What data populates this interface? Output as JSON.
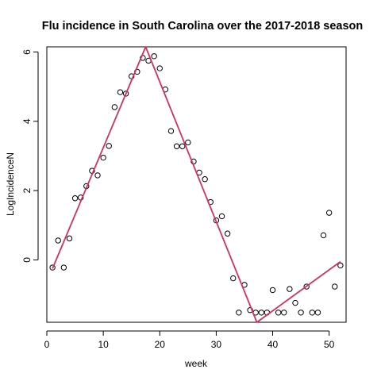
{
  "chart_data": {
    "type": "scatter",
    "title": "Flu incidence in South Carolina over the 2017-2018 season",
    "xlabel": "week",
    "ylabel": "LogIncidenceN",
    "xlim": [
      0,
      53
    ],
    "ylim": [
      -1.8,
      6.15
    ],
    "xticks": [
      0,
      10,
      20,
      30,
      40,
      50
    ],
    "yticks": [
      0,
      2,
      4,
      6
    ],
    "grid": false,
    "legend": "none",
    "colors": {
      "points": "#000000",
      "fit_line": "#d1325a"
    },
    "points": {
      "x": [
        1,
        2,
        3,
        4,
        5,
        6,
        7,
        8,
        9,
        10,
        11,
        12,
        13,
        14,
        15,
        16,
        17,
        18,
        19,
        20,
        21,
        22,
        23,
        24,
        25,
        26,
        27,
        28,
        29,
        30,
        31,
        32,
        33,
        34,
        35,
        36,
        37,
        38,
        39,
        40,
        41,
        42,
        43,
        44,
        45,
        46,
        47,
        48,
        49,
        50,
        51,
        52
      ],
      "y": [
        -0.22,
        0.56,
        -0.22,
        0.62,
        1.78,
        1.8,
        2.13,
        2.57,
        2.44,
        2.95,
        3.29,
        4.41,
        4.84,
        4.8,
        5.3,
        5.43,
        5.83,
        5.75,
        5.88,
        5.53,
        4.92,
        3.72,
        3.28,
        3.28,
        3.39,
        2.84,
        2.52,
        2.33,
        1.67,
        1.14,
        1.26,
        0.76,
        -0.53,
        -1.52,
        -0.72,
        -1.45,
        -1.52,
        -1.52,
        -1.52,
        -0.87,
        -1.52,
        -1.52,
        -0.84,
        -1.24,
        -1.52,
        -0.77,
        -1.52,
        -1.52,
        0.71,
        1.36,
        -0.77,
        -0.16
      ]
    },
    "fit_line": {
      "x": [
        1,
        17.5,
        37.2,
        52
      ],
      "y": [
        -0.25,
        6.15,
        -1.8,
        -0.05
      ]
    }
  }
}
